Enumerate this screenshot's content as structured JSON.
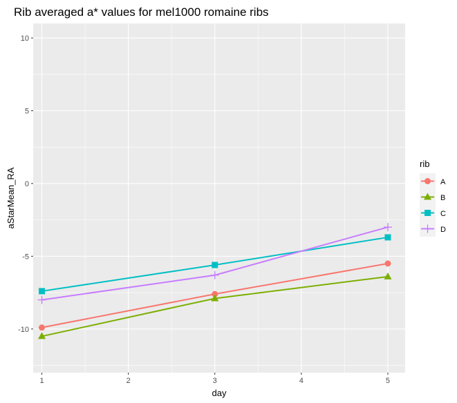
{
  "chart_data": {
    "type": "line",
    "title": "Rib averaged a* values for mel1000 romaine ribs",
    "xlabel": "day",
    "ylabel": "aStarMean_RA",
    "xlim": [
      0.9,
      5.2
    ],
    "ylim": [
      -13,
      11
    ],
    "x_ticks": [
      1,
      2,
      3,
      4,
      5
    ],
    "y_ticks": [
      -10,
      -5,
      0,
      5,
      10
    ],
    "grid": true,
    "legend_title": "rib",
    "legend_position": "right",
    "series": [
      {
        "name": "A",
        "color": "#F8766D",
        "marker": "circle",
        "x": [
          1,
          3,
          5
        ],
        "y": [
          -9.9,
          -7.6,
          -5.5
        ]
      },
      {
        "name": "B",
        "color": "#7CAE00",
        "marker": "triangle",
        "x": [
          1,
          3,
          5
        ],
        "y": [
          -10.5,
          -7.9,
          -6.4
        ]
      },
      {
        "name": "C",
        "color": "#00BFC4",
        "marker": "square",
        "x": [
          1,
          3,
          5
        ],
        "y": [
          -7.4,
          -5.6,
          -3.7
        ]
      },
      {
        "name": "D",
        "color": "#C77CFF",
        "marker": "plus",
        "x": [
          1,
          3,
          5
        ],
        "y": [
          -8.0,
          -6.3,
          -3.0
        ]
      }
    ]
  }
}
